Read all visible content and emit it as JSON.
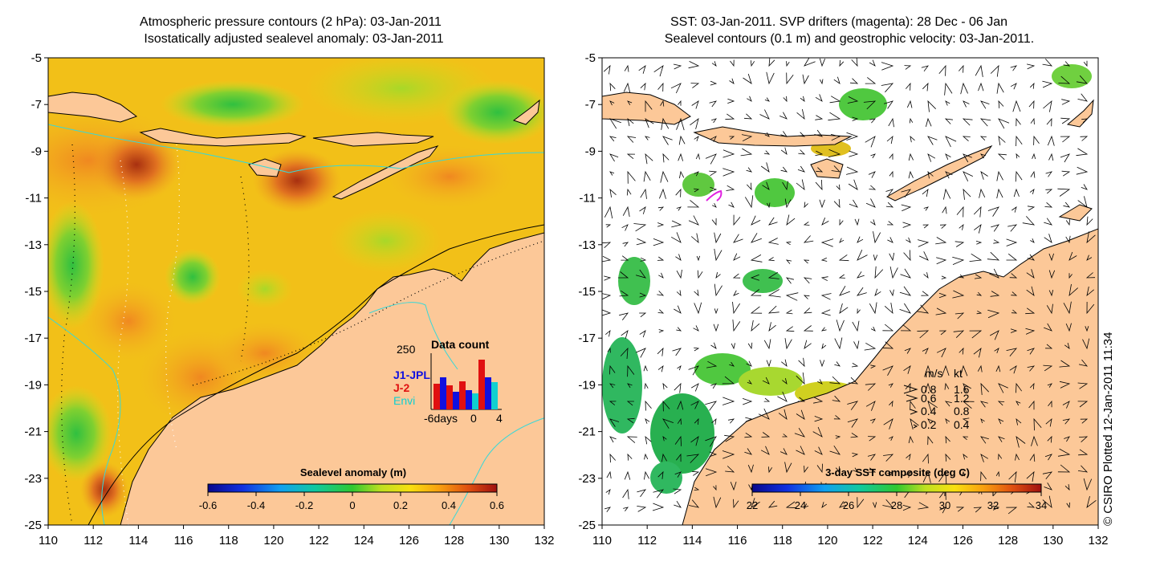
{
  "credit": "© CSIRO Plotted 12-Jan-2011 11:34",
  "left_panel": {
    "title_line1": "Atmospheric pressure contours (2 hPa): 03-Jan-2011",
    "title_line2": "Isostatically adjusted sealevel anomaly: 03-Jan-2011",
    "x_ticks": [
      "110",
      "112",
      "114",
      "116",
      "118",
      "120",
      "122",
      "124",
      "126",
      "128",
      "130",
      "132"
    ],
    "y_ticks": [
      "-5",
      "-7",
      "-9",
      "-11",
      "-13",
      "-15",
      "-17",
      "-19",
      "-21",
      "-23",
      "-25"
    ],
    "colorbar": {
      "label": "Sealevel anomaly (m)",
      "ticks": [
        "-0.6",
        "-0.4",
        "-0.2",
        "0",
        "0.2",
        "0.4",
        "0.6"
      ]
    },
    "data_count": {
      "title": "Data count",
      "max_label": "250",
      "x_left": "-6days",
      "x_mid": "0",
      "x_right": "4",
      "missions": [
        {
          "name": "J1-JPL",
          "color": "#1010e0"
        },
        {
          "name": "J-2",
          "color": "#e01010"
        },
        {
          "name": "Envi",
          "color": "#10d0d0"
        }
      ]
    }
  },
  "right_panel": {
    "title_line1": "SST: 03-Jan-2011. SVP drifters (magenta): 28 Dec - 06 Jan",
    "title_line2": "Sealevel contours (0.1 m) and geostrophic velocity: 03-Jan-2011.",
    "x_ticks": [
      "110",
      "112",
      "114",
      "116",
      "118",
      "120",
      "122",
      "124",
      "126",
      "128",
      "130",
      "132"
    ],
    "y_ticks": [
      "-5",
      "-7",
      "-9",
      "-11",
      "-13",
      "-15",
      "-17",
      "-19",
      "-21",
      "-23",
      "-25"
    ],
    "colorbar": {
      "label": "3-day SST composite (deg C)",
      "ticks": [
        "22",
        "24",
        "26",
        "28",
        "30",
        "32",
        "34"
      ]
    },
    "velocity_legend": {
      "header_ms": "m/s",
      "header_kt": "kt",
      "rows": [
        {
          "ms": "0.8",
          "kt": "1.6"
        },
        {
          "ms": "0.6",
          "kt": "1.2"
        },
        {
          "ms": "0.4",
          "kt": "0.8"
        },
        {
          "ms": "0.2",
          "kt": "0.4"
        }
      ]
    }
  },
  "colors": {
    "land": "#fcc898",
    "ocean_base": "#f4c010",
    "coastline": "#000000",
    "drifter": "#e020e0"
  }
}
